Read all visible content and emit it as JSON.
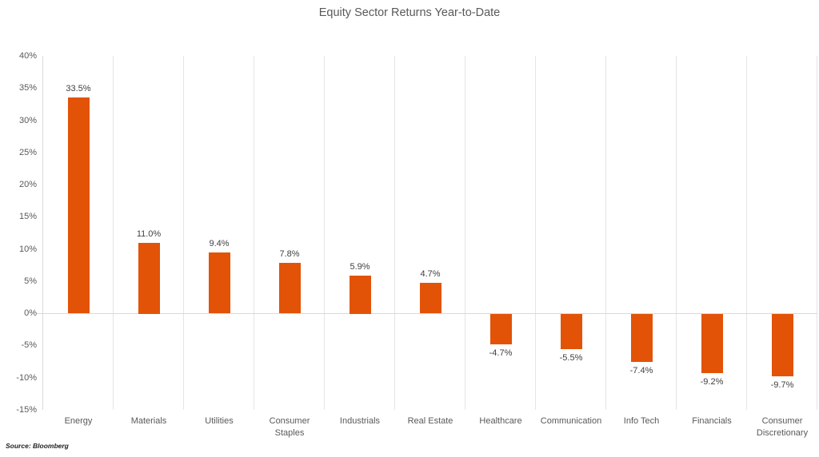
{
  "title": "Equity Sector Returns Year-to-Date",
  "source": "Source: Bloomberg",
  "colors": {
    "bar": "#E25308",
    "title_text": "#595959",
    "axis_text": "#595959",
    "data_label_text": "#404040",
    "gridline": "#E5E5E5",
    "axis_line": "#D9D9D9"
  },
  "chart_data": {
    "type": "bar",
    "title": "Equity Sector Returns Year-to-Date",
    "categories": [
      "Energy",
      "Materials",
      "Utilities",
      "Consumer Staples",
      "Industrials",
      "Real Estate",
      "Healthcare",
      "Communication",
      "Info Tech",
      "Financials",
      "Consumer Discretionary"
    ],
    "values": [
      33.5,
      11.0,
      9.4,
      7.8,
      5.9,
      4.7,
      -4.7,
      -5.5,
      -7.4,
      -9.2,
      -9.7
    ],
    "data_labels": [
      "33.5%",
      "11.0%",
      "9.4%",
      "7.8%",
      "5.9%",
      "4.7%",
      "-4.7%",
      "-5.5%",
      "-7.4%",
      "-9.2%",
      "-9.7%"
    ],
    "xlabel": "",
    "ylabel": "",
    "ylim": [
      -15,
      40
    ],
    "ytick_step": 5,
    "ytick_labels": [
      "40%",
      "35%",
      "30%",
      "25%",
      "20%",
      "15%",
      "10%",
      "5%",
      "0%",
      "-5%",
      "-10%",
      "-15%"
    ],
    "grid": "vertical-only",
    "legend": "none",
    "bar_color": "#E25308",
    "source": "Source: Bloomberg"
  }
}
